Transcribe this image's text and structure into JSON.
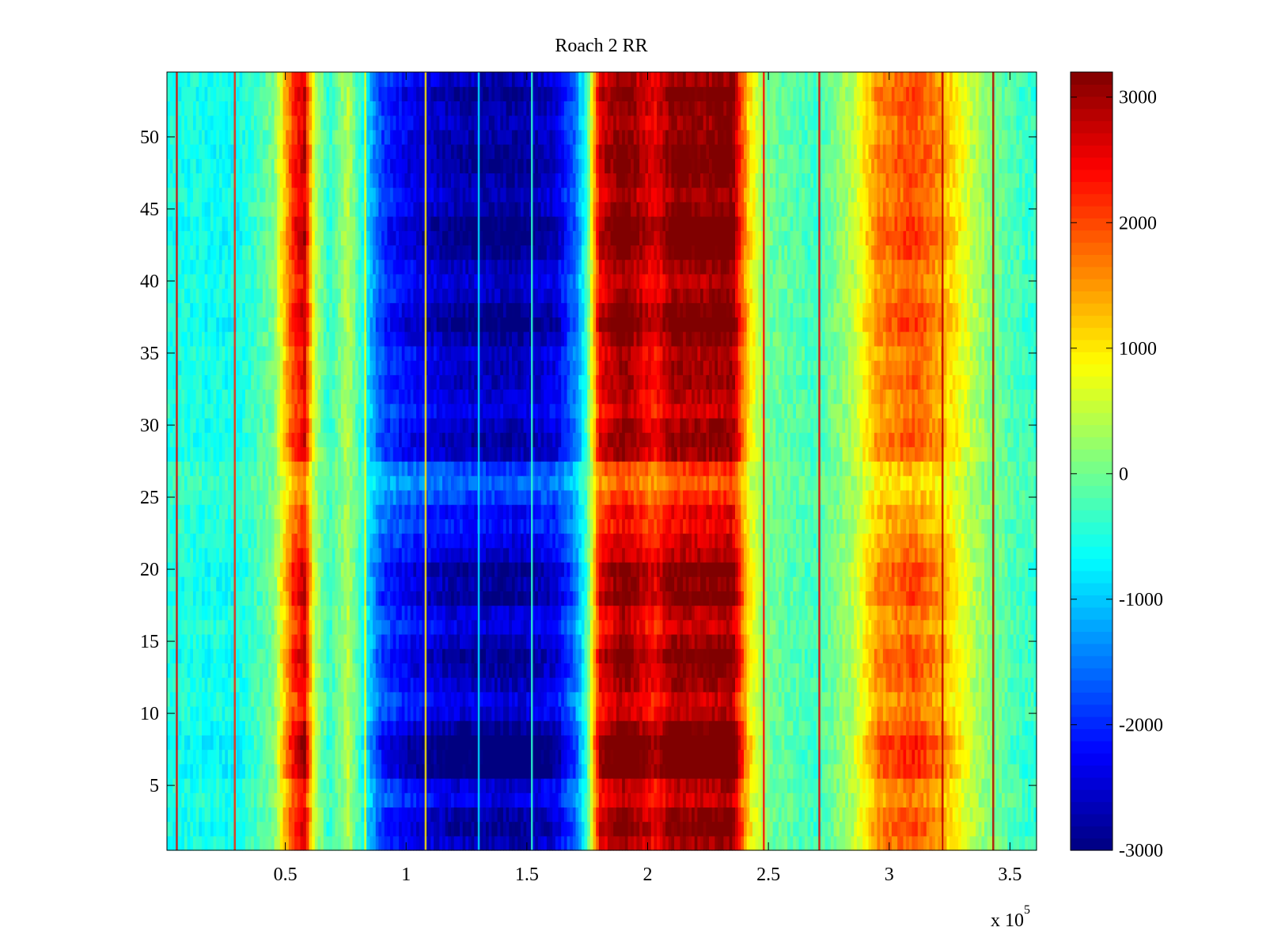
{
  "chart_data": {
    "type": "heatmap",
    "title": "Roach 2 RR",
    "xlabel": "",
    "ylabel": "",
    "x_multiplier_label": "x 10",
    "x_multiplier_exponent": "5",
    "xlim": [
      0.01,
      3.61
    ],
    "ylim": [
      0.5,
      54.5
    ],
    "x_unit_scale": 100000,
    "x_ticks": [
      {
        "value": 0.5,
        "label": "0.5"
      },
      {
        "value": 1,
        "label": "1"
      },
      {
        "value": 1.5,
        "label": "1.5"
      },
      {
        "value": 2,
        "label": "2"
      },
      {
        "value": 2.5,
        "label": "2.5"
      },
      {
        "value": 3,
        "label": "3"
      },
      {
        "value": 3.5,
        "label": "3.5"
      }
    ],
    "y_ticks": [
      {
        "value": 5,
        "label": "5"
      },
      {
        "value": 10,
        "label": "10"
      },
      {
        "value": 15,
        "label": "15"
      },
      {
        "value": 20,
        "label": "20"
      },
      {
        "value": 25,
        "label": "25"
      },
      {
        "value": 30,
        "label": "30"
      },
      {
        "value": 35,
        "label": "35"
      },
      {
        "value": 40,
        "label": "40"
      },
      {
        "value": 45,
        "label": "45"
      },
      {
        "value": 50,
        "label": "50"
      }
    ],
    "colorbar": {
      "colormap": "jet",
      "clim": [
        -3000,
        3200
      ],
      "ticks": [
        {
          "value": 3000,
          "label": "3000"
        },
        {
          "value": 2000,
          "label": "2000"
        },
        {
          "value": 1000,
          "label": "1000"
        },
        {
          "value": 0,
          "label": "0"
        },
        {
          "value": -1000,
          "label": "-1000"
        },
        {
          "value": -2000,
          "label": "-2000"
        },
        {
          "value": -3000,
          "label": "-3000"
        }
      ]
    },
    "rows": 54,
    "column_profile": [
      {
        "x": 0.01,
        "v": -500
      },
      {
        "x": 0.3,
        "v": -600
      },
      {
        "x": 0.45,
        "v": 0
      },
      {
        "x": 0.53,
        "v": 2000
      },
      {
        "x": 0.58,
        "v": 2600
      },
      {
        "x": 0.62,
        "v": 500
      },
      {
        "x": 0.68,
        "v": -400
      },
      {
        "x": 0.76,
        "v": 400
      },
      {
        "x": 0.83,
        "v": -700
      },
      {
        "x": 0.9,
        "v": -1800
      },
      {
        "x": 1.0,
        "v": -2200
      },
      {
        "x": 1.2,
        "v": -2600
      },
      {
        "x": 1.45,
        "v": -2700
      },
      {
        "x": 1.62,
        "v": -2400
      },
      {
        "x": 1.7,
        "v": -1500
      },
      {
        "x": 1.75,
        "v": -300
      },
      {
        "x": 1.8,
        "v": 2500
      },
      {
        "x": 1.9,
        "v": 3100
      },
      {
        "x": 2.03,
        "v": 2400
      },
      {
        "x": 2.1,
        "v": 3000
      },
      {
        "x": 2.25,
        "v": 3000
      },
      {
        "x": 2.35,
        "v": 3100
      },
      {
        "x": 2.42,
        "v": 1000
      },
      {
        "x": 2.5,
        "v": 0
      },
      {
        "x": 2.7,
        "v": -300
      },
      {
        "x": 2.85,
        "v": 400
      },
      {
        "x": 2.95,
        "v": 1500
      },
      {
        "x": 3.1,
        "v": 1900
      },
      {
        "x": 3.2,
        "v": 1500
      },
      {
        "x": 3.35,
        "v": 400
      },
      {
        "x": 3.5,
        "v": -200
      },
      {
        "x": 3.61,
        "v": -400
      }
    ],
    "row_factors": [
      1.0,
      1.1,
      1.05,
      0.9,
      0.95,
      1.2,
      1.2,
      1.25,
      1.1,
      0.95,
      0.9,
      1.0,
      1.05,
      1.1,
      1.0,
      0.9,
      0.95,
      1.1,
      1.05,
      1.1,
      0.95,
      0.9,
      0.8,
      0.85,
      0.7,
      0.6,
      0.7,
      1.0,
      1.05,
      1.0,
      0.9,
      0.95,
      1.0,
      1.0,
      0.95,
      1.05,
      1.15,
      1.1,
      1.0,
      0.95,
      1.0,
      1.1,
      1.15,
      1.15,
      1.05,
      1.0,
      1.05,
      1.1,
      1.1,
      1.05,
      1.0,
      1.05,
      1.1,
      1.0
    ],
    "streaks": [
      {
        "x": 0.05,
        "v": 2600
      },
      {
        "x": 0.29,
        "v": 2200
      },
      {
        "x": 0.83,
        "v": 800
      },
      {
        "x": 1.08,
        "v": 1000
      },
      {
        "x": 1.3,
        "v": -900
      },
      {
        "x": 1.52,
        "v": -400
      },
      {
        "x": 2.48,
        "v": 2400
      },
      {
        "x": 2.71,
        "v": 2600
      },
      {
        "x": 3.22,
        "v": 2800
      },
      {
        "x": 3.43,
        "v": 2900
      }
    ]
  }
}
